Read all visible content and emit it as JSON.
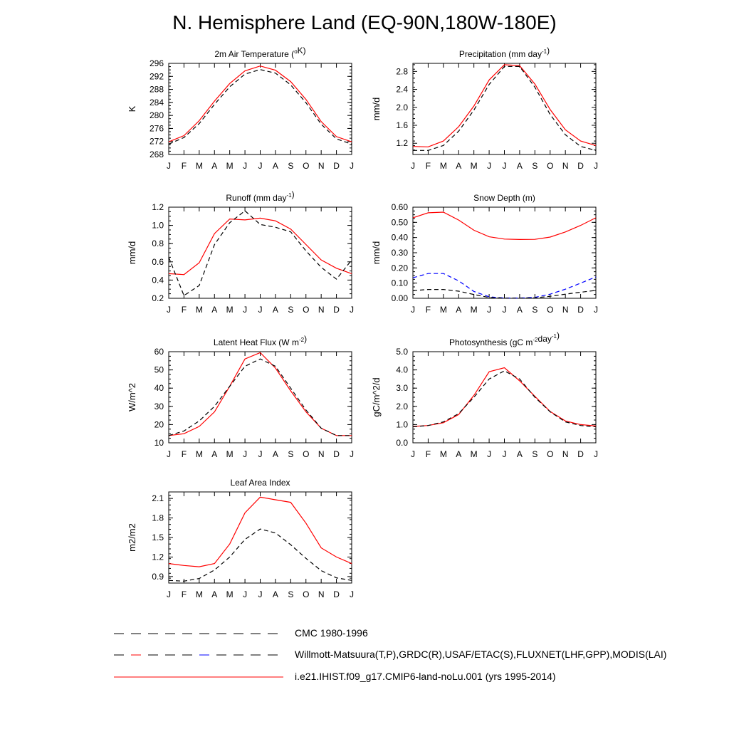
{
  "title": "N. Hemisphere Land (EQ-90N,180W-180E)",
  "colors": {
    "model": "#ff0000",
    "obs": "#000000",
    "obs_alt": "#0000ff"
  },
  "legend": [
    {
      "label": "CMC 1980-1996",
      "style": "dash-black"
    },
    {
      "label": "Willmott-Matsuura(T,P),GRDC(R),USAF/ETAC(S),FLUXNET(LHF,GPP),MODIS(LAI)",
      "style": "dash-multi"
    },
    {
      "label": "i.e21.IHIST.f09_g17.CMIP6-land-noLu.001 (yrs 1995-2014)",
      "style": "solid-red"
    }
  ],
  "chart_data": [
    {
      "type": "line",
      "title_main": "2m Air Temperature (",
      "title_sup": "o",
      "title_tail": "K)",
      "ylabel": "K",
      "categories": [
        "J",
        "F",
        "M",
        "A",
        "M",
        "J",
        "J",
        "A",
        "S",
        "O",
        "N",
        "D",
        "J"
      ],
      "ylim": [
        268,
        296
      ],
      "yticks": [
        268,
        272,
        276,
        280,
        284,
        288,
        292,
        296
      ],
      "decimals": 0,
      "series": [
        {
          "color": "#ff0000",
          "dash": false,
          "values": [
            271.9,
            273.8,
            278.4,
            284.4,
            289.8,
            293.7,
            295.2,
            293.9,
            290.4,
            284.9,
            278.1,
            273.5,
            271.9
          ]
        },
        {
          "color": "#000000",
          "dash": true,
          "values": [
            271.2,
            273.2,
            277.5,
            283.4,
            288.8,
            292.7,
            294.1,
            293.0,
            289.4,
            283.9,
            277.3,
            272.8,
            271.2
          ]
        }
      ]
    },
    {
      "type": "line",
      "title_main": "Precipitation (mm day",
      "title_sup": "-1",
      "title_tail": ")",
      "ylabel": "mm/d",
      "categories": [
        "J",
        "F",
        "M",
        "A",
        "M",
        "J",
        "J",
        "A",
        "S",
        "O",
        "N",
        "D",
        "J"
      ],
      "ylim": [
        0.95,
        2.98
      ],
      "yticks": [
        1.2,
        1.6,
        2.0,
        2.4,
        2.8
      ],
      "decimals": 1,
      "series": [
        {
          "color": "#ff0000",
          "dash": false,
          "values": [
            1.13,
            1.12,
            1.25,
            1.57,
            2.03,
            2.61,
            2.95,
            2.93,
            2.52,
            1.95,
            1.5,
            1.25,
            1.15
          ]
        },
        {
          "color": "#000000",
          "dash": true,
          "values": [
            1.04,
            1.04,
            1.15,
            1.47,
            1.94,
            2.51,
            2.91,
            2.91,
            2.45,
            1.84,
            1.39,
            1.13,
            1.04
          ]
        }
      ]
    },
    {
      "type": "line",
      "title_main": "Runoff (mm day",
      "title_sup": "-1",
      "title_tail": ")",
      "ylabel": "mm/d",
      "categories": [
        "J",
        "F",
        "M",
        "A",
        "M",
        "J",
        "J",
        "A",
        "S",
        "O",
        "N",
        "D",
        "J"
      ],
      "ylim": [
        0.2,
        1.2
      ],
      "yticks": [
        0.2,
        0.4,
        0.6,
        0.8,
        1.0,
        1.2
      ],
      "decimals": 1,
      "series": [
        {
          "color": "#ff0000",
          "dash": false,
          "values": [
            0.47,
            0.46,
            0.59,
            0.91,
            1.07,
            1.06,
            1.08,
            1.05,
            0.96,
            0.79,
            0.62,
            0.53,
            0.47
          ]
        },
        {
          "color": "#000000",
          "dash": true,
          "values": [
            0.65,
            0.23,
            0.34,
            0.79,
            1.03,
            1.16,
            1.01,
            0.98,
            0.93,
            0.72,
            0.54,
            0.41,
            0.62
          ]
        }
      ]
    },
    {
      "type": "line",
      "title_main": "Snow Depth (m)",
      "title_sup": "",
      "title_tail": "",
      "ylabel": "mm/d",
      "categories": [
        "J",
        "F",
        "M",
        "A",
        "M",
        "J",
        "J",
        "A",
        "S",
        "O",
        "N",
        "D",
        "J"
      ],
      "ylim": [
        0.0,
        0.6
      ],
      "yticks": [
        0.0,
        0.1,
        0.2,
        0.3,
        0.4,
        0.5,
        0.6
      ],
      "decimals": 2,
      "series": [
        {
          "color": "#ff0000",
          "dash": false,
          "values": [
            0.53,
            0.563,
            0.567,
            0.515,
            0.448,
            0.405,
            0.39,
            0.387,
            0.388,
            0.403,
            0.437,
            0.48,
            0.53
          ]
        },
        {
          "color": "#0000ff",
          "dash": true,
          "values": [
            0.135,
            0.163,
            0.163,
            0.115,
            0.045,
            0.01,
            0.002,
            0.002,
            0.006,
            0.027,
            0.06,
            0.1,
            0.14
          ]
        },
        {
          "color": "#000000",
          "dash": true,
          "values": [
            0.05,
            0.058,
            0.058,
            0.047,
            0.025,
            0.005,
            0.001,
            0.001,
            0.003,
            0.013,
            0.027,
            0.04,
            0.052
          ]
        }
      ]
    },
    {
      "type": "line",
      "title_main": "Latent Heat Flux (W m",
      "title_sup": "-2",
      "title_tail": ")",
      "ylabel": "W/m^2",
      "categories": [
        "J",
        "F",
        "M",
        "A",
        "M",
        "J",
        "J",
        "A",
        "S",
        "O",
        "N",
        "D",
        "J"
      ],
      "ylim": [
        10,
        60
      ],
      "yticks": [
        10,
        20,
        30,
        40,
        50,
        60
      ],
      "decimals": 0,
      "series": [
        {
          "color": "#ff0000",
          "dash": false,
          "values": [
            14,
            15,
            19,
            27,
            41,
            56,
            59.5,
            51,
            38.5,
            27,
            18,
            14,
            14
          ]
        },
        {
          "color": "#000000",
          "dash": true,
          "values": [
            14,
            16.5,
            22,
            30,
            41,
            52,
            56,
            52,
            40,
            28,
            18,
            14,
            14
          ]
        }
      ]
    },
    {
      "type": "line",
      "title_main": "Photosynthesis (gC m",
      "title_sup": "-2",
      "title_tail": "day",
      "title_sup2": "-1",
      "title_tail2": ")",
      "ylabel": "gC/m^2/d",
      "categories": [
        "J",
        "F",
        "M",
        "A",
        "M",
        "J",
        "J",
        "A",
        "S",
        "O",
        "N",
        "D",
        "J"
      ],
      "ylim": [
        0.0,
        5.0
      ],
      "yticks": [
        0.0,
        1.0,
        2.0,
        3.0,
        4.0,
        5.0
      ],
      "decimals": 1,
      "series": [
        {
          "color": "#ff0000",
          "dash": false,
          "values": [
            0.9,
            0.95,
            1.1,
            1.55,
            2.6,
            3.9,
            4.12,
            3.4,
            2.55,
            1.72,
            1.2,
            1.0,
            0.92
          ]
        },
        {
          "color": "#000000",
          "dash": true,
          "values": [
            0.88,
            0.95,
            1.15,
            1.6,
            2.5,
            3.5,
            3.95,
            3.5,
            2.5,
            1.7,
            1.15,
            0.95,
            0.88
          ]
        }
      ]
    },
    {
      "type": "line",
      "title_main": "Leaf Area Index",
      "title_sup": "",
      "title_tail": "",
      "ylabel": "m2/m2",
      "categories": [
        "J",
        "F",
        "M",
        "A",
        "M",
        "J",
        "J",
        "A",
        "S",
        "O",
        "N",
        "D",
        "J"
      ],
      "ylim": [
        0.8,
        2.2
      ],
      "yticks": [
        0.9,
        1.2,
        1.5,
        1.8,
        2.1
      ],
      "decimals": 1,
      "series": [
        {
          "color": "#ff0000",
          "dash": false,
          "values": [
            1.1,
            1.07,
            1.05,
            1.1,
            1.4,
            1.88,
            2.12,
            2.08,
            2.04,
            1.72,
            1.34,
            1.2,
            1.1
          ]
        },
        {
          "color": "#000000",
          "dash": true,
          "values": [
            0.84,
            0.83,
            0.87,
            1.0,
            1.2,
            1.47,
            1.63,
            1.57,
            1.39,
            1.18,
            0.99,
            0.88,
            0.84
          ]
        }
      ]
    }
  ]
}
